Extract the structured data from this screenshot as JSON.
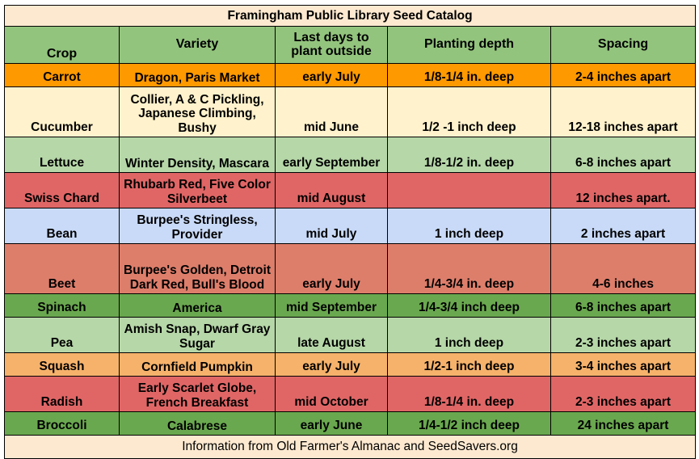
{
  "title": "Framingham Public Library Seed Catalog",
  "headers": {
    "crop": "Crop",
    "variety": "Variety",
    "last_days": "Last days to plant outside",
    "depth": "Planting depth",
    "spacing": "Spacing"
  },
  "rows": [
    {
      "crop": "Carrot",
      "variety": "Dragon, Paris Market",
      "last": "early July",
      "depth": "1/8-1/4 in. deep",
      "spacing": "2-4 inches apart",
      "color": "#ff9900"
    },
    {
      "crop": "Cucumber",
      "variety": "Collier, A & C Pickling, Japanese Climbing, Bushy",
      "last": "mid June",
      "depth": "1/2 -1 inch deep",
      "spacing": "12-18 inches apart",
      "color": "#fff2cc"
    },
    {
      "crop": "Lettuce",
      "variety": "Winter Density, Mascara",
      "last": "early September",
      "depth": "1/8-1/2 in. deep",
      "spacing": "6-8 inches apart",
      "color": "#b6d7a8"
    },
    {
      "crop": "Swiss Chard",
      "variety": "Rhubarb Red, Five Color Silverbeet",
      "last": "mid August",
      "depth": "",
      "spacing": "12 inches apart.",
      "color": "#e06666"
    },
    {
      "crop": "Bean",
      "variety": "Burpee's Stringless, Provider",
      "last": "mid July",
      "depth": "1 inch deep",
      "spacing": "2 inches apart",
      "color": "#c9daf8"
    },
    {
      "crop": "Beet",
      "variety": "Burpee's Golden, Detroit Dark Red, Bull's Blood",
      "last": "early July",
      "depth": "1/4-3/4 in. deep",
      "spacing": "4-6 inches",
      "color": "#dd7e6b"
    },
    {
      "crop": "Spinach",
      "variety": "America",
      "last": "mid September",
      "depth": "1/4-3/4 inch deep",
      "spacing": "6-8 inches apart",
      "color": "#6aa84f"
    },
    {
      "crop": "Pea",
      "variety": "Amish Snap, Dwarf Gray Sugar",
      "last": "late August",
      "depth": "1 inch deep",
      "spacing": "2-3 inches apart",
      "color": "#b6d7a8"
    },
    {
      "crop": "Squash",
      "variety": "Cornfield Pumpkin",
      "last": "early July",
      "depth": "1/2-1 inch deep",
      "spacing": "3-4 inches apart",
      "color": "#f6b26b"
    },
    {
      "crop": "Radish",
      "variety": "Early Scarlet Globe, French Breakfast",
      "last": "mid October",
      "depth": "1/8-1/4 in. deep",
      "spacing": "2-3 inches apart",
      "color": "#e06666"
    },
    {
      "crop": "Broccoli",
      "variety": "Calabrese",
      "last": "early June",
      "depth": "1/4-1/2 inch deep",
      "spacing": "24 inches apart",
      "color": "#6aa84f"
    }
  ],
  "footer": "Information from Old Farmer's Almanac and SeedSavers.org"
}
